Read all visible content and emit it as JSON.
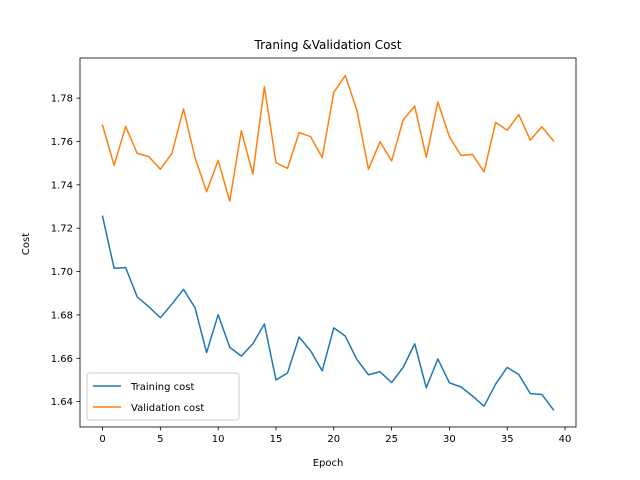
{
  "chart_data": {
    "type": "line",
    "title": "Traning &Validation Cost",
    "xlabel": "Epoch",
    "ylabel": "Cost",
    "xlim": [
      -1.95,
      40.95
    ],
    "ylim": [
      1.6283,
      1.7985
    ],
    "xticks": [
      0,
      5,
      10,
      15,
      20,
      25,
      30,
      35,
      40
    ],
    "yticks": [
      1.64,
      1.66,
      1.68,
      1.7,
      1.72,
      1.74,
      1.76,
      1.78
    ],
    "ytick_labels": [
      "1.64",
      "1.66",
      "1.68",
      "1.70",
      "1.72",
      "1.74",
      "1.76",
      "1.78"
    ],
    "grid": false,
    "legend_position": "lower-left",
    "x": [
      0,
      1,
      2,
      3,
      4,
      5,
      6,
      7,
      8,
      9,
      10,
      11,
      12,
      13,
      14,
      15,
      16,
      17,
      18,
      19,
      20,
      21,
      22,
      23,
      24,
      25,
      26,
      27,
      28,
      29,
      30,
      31,
      32,
      33,
      34,
      35,
      36,
      37,
      38,
      39
    ],
    "series": [
      {
        "name": "Training cost",
        "color": "#1f77b4",
        "values": [
          1.7255,
          1.7015,
          1.7018,
          1.6883,
          1.6838,
          1.6787,
          1.685,
          1.6918,
          1.6833,
          1.6626,
          1.6801,
          1.6651,
          1.661,
          1.6667,
          1.6758,
          1.65,
          1.6532,
          1.6698,
          1.6634,
          1.6542,
          1.674,
          1.6702,
          1.6594,
          1.6524,
          1.6538,
          1.6488,
          1.6558,
          1.6667,
          1.6464,
          1.6597,
          1.6487,
          1.6468,
          1.6426,
          1.6379,
          1.6481,
          1.6558,
          1.6525,
          1.6437,
          1.6433,
          1.6362
        ]
      },
      {
        "name": "Validation cost",
        "color": "#ff7f0e",
        "values": [
          1.7675,
          1.749,
          1.7669,
          1.7545,
          1.753,
          1.7472,
          1.7545,
          1.775,
          1.7525,
          1.7368,
          1.7513,
          1.7325,
          1.7649,
          1.745,
          1.7853,
          1.7502,
          1.7476,
          1.7641,
          1.7622,
          1.7526,
          1.7827,
          1.7904,
          1.7744,
          1.7472,
          1.7599,
          1.751,
          1.7699,
          1.7763,
          1.7527,
          1.7782,
          1.7622,
          1.7536,
          1.754,
          1.746,
          1.7688,
          1.7652,
          1.7724,
          1.7606,
          1.7668,
          1.7603
        ]
      }
    ]
  }
}
